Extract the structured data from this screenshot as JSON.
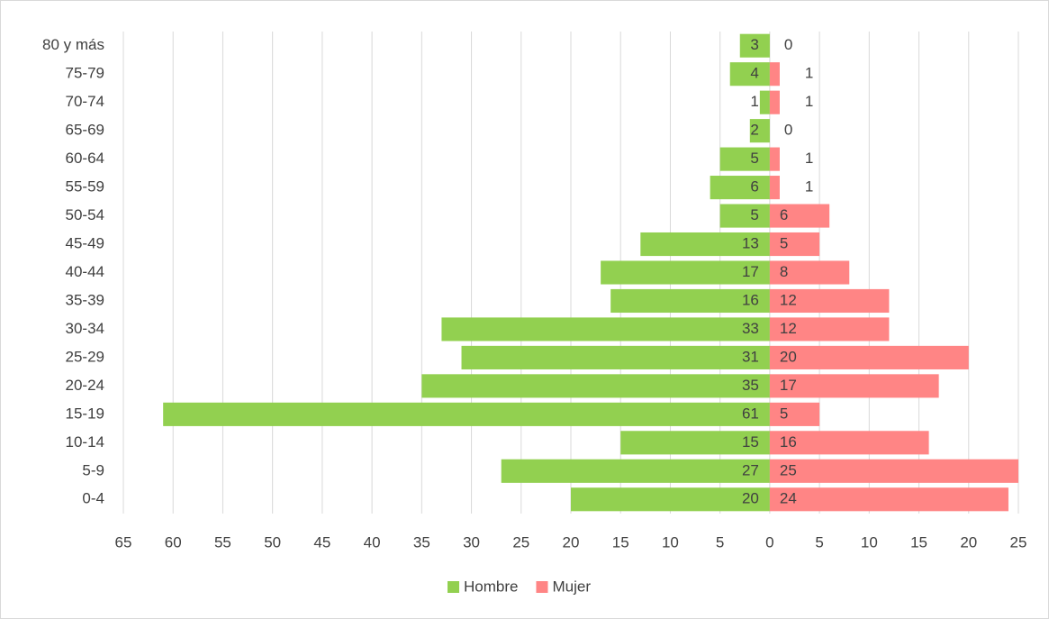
{
  "chart_data": {
    "type": "pyramid",
    "categories": [
      "0-4",
      "5-9",
      "10-14",
      "15-19",
      "20-24",
      "25-29",
      "30-34",
      "35-39",
      "40-44",
      "45-49",
      "50-54",
      "55-59",
      "60-64",
      "65-69",
      "70-74",
      "75-79",
      "80 y más"
    ],
    "series": [
      {
        "name": "Hombre",
        "color": "#92d050",
        "values": [
          -20,
          -27,
          -15,
          -61,
          -35,
          -31,
          -33,
          -16,
          -17,
          -13,
          -5,
          -6,
          -5,
          -2,
          -1,
          -4,
          -3
        ],
        "value_labels": [
          "20",
          "27",
          "15",
          "61",
          "35",
          "31",
          "33",
          "16",
          "17",
          "13",
          "5",
          "6",
          "5",
          "2",
          "1",
          "4",
          "3"
        ]
      },
      {
        "name": "Mujer",
        "color": "#ff8585",
        "values": [
          24,
          25,
          16,
          5,
          17,
          20,
          12,
          12,
          8,
          5,
          6,
          1,
          1,
          0,
          1,
          1,
          0
        ]
      }
    ],
    "xlim": [
      -65,
      25
    ],
    "xticks": [
      {
        "value": -65,
        "label": "65"
      },
      {
        "value": -60,
        "label": "60"
      },
      {
        "value": -55,
        "label": "55"
      },
      {
        "value": -50,
        "label": "50"
      },
      {
        "value": -45,
        "label": "45"
      },
      {
        "value": -40,
        "label": "40"
      },
      {
        "value": -35,
        "label": "35"
      },
      {
        "value": -30,
        "label": "30"
      },
      {
        "value": -25,
        "label": "25"
      },
      {
        "value": -20,
        "label": "20"
      },
      {
        "value": -15,
        "label": "15"
      },
      {
        "value": -10,
        "label": "10"
      },
      {
        "value": -5,
        "label": "5"
      },
      0,
      5,
      10,
      15,
      20,
      25
    ],
    "grid": true,
    "legend": "bottom"
  }
}
